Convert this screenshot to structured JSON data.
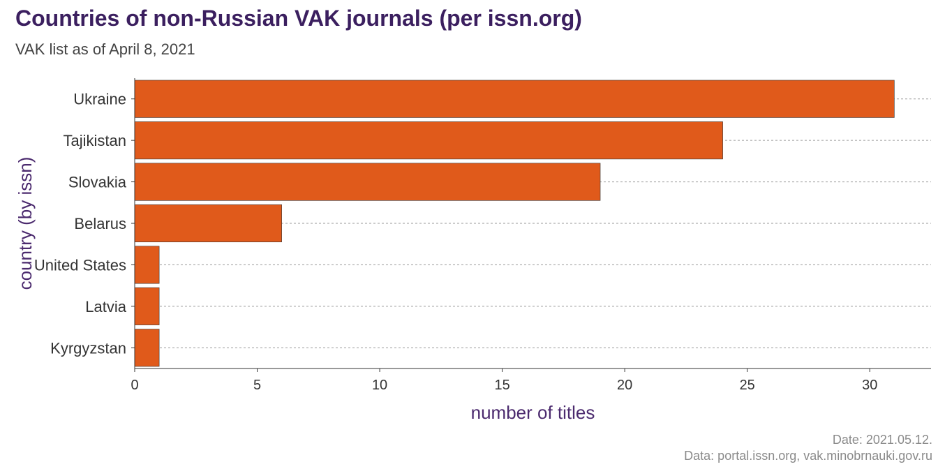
{
  "chart_data": {
    "type": "bar",
    "orientation": "horizontal",
    "title": "Countries of non-Russian VAK journals (per issn.org)",
    "subtitle": "VAK list as of April 8, 2021",
    "xlabel": "number of titles",
    "ylabel": "country (by issn)",
    "categories": [
      "Ukraine",
      "Tajikistan",
      "Slovakia",
      "Belarus",
      "United States",
      "Latvia",
      "Kyrgyzstan"
    ],
    "values": [
      31,
      24,
      19,
      6,
      1,
      1,
      1
    ],
    "xlim": [
      0,
      32.5
    ],
    "xticks": [
      "0",
      "5",
      "10",
      "15",
      "20",
      "25",
      "30"
    ],
    "grid": "horizontal dashed lines",
    "legend": "none"
  },
  "caption": {
    "date": "Date: 2021.05.12.",
    "source": "Data: portal.issn.org, vak.minobrnauki.gov.ru"
  },
  "colors": {
    "bar": "#e05a1b",
    "title": "#3b1f5f",
    "axis_label": "#4b2a6e",
    "grid": "#9a9a9a",
    "tick_text": "#333333"
  }
}
